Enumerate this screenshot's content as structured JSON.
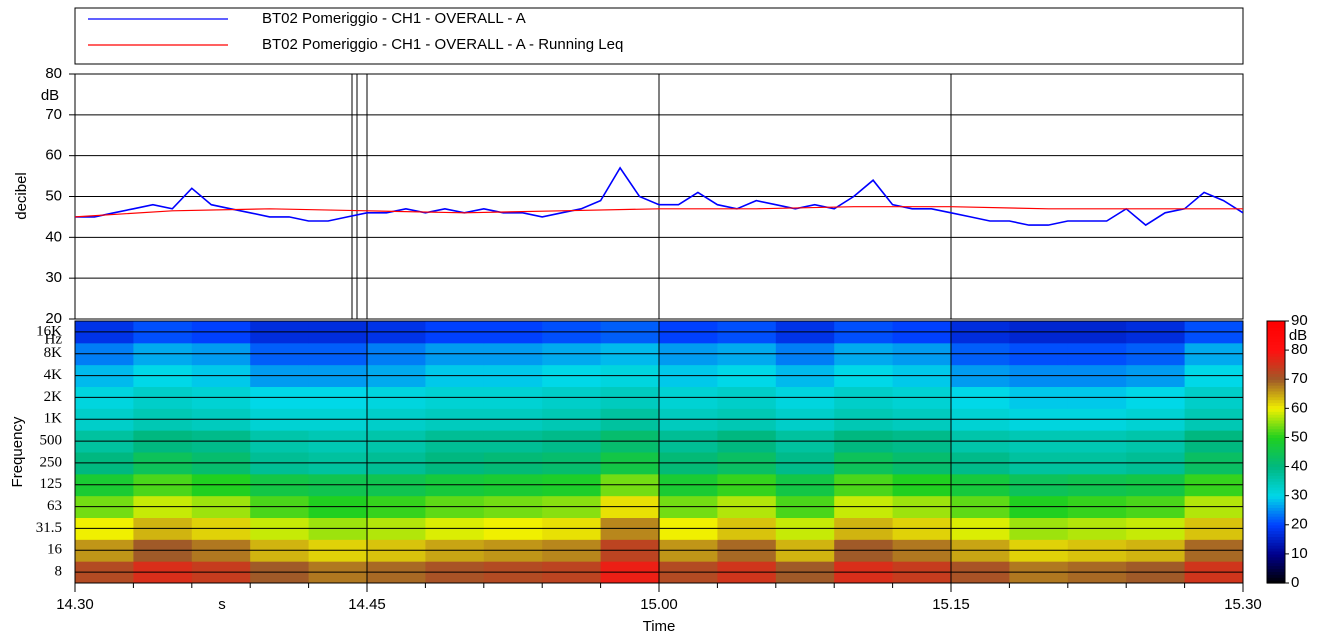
{
  "chart_data": [
    {
      "type": "line",
      "ylabel": "decibel",
      "y_unit": "dB",
      "ylim": [
        20,
        80
      ],
      "yticks": [
        20,
        30,
        40,
        50,
        60,
        70,
        80
      ],
      "grid": true,
      "legend": "top",
      "series": [
        {
          "name": "BT02 Pomeriggio - CH1 - OVERALL - A",
          "color": "#0000ff",
          "x": [
            870,
            871,
            872,
            873,
            874,
            875,
            876,
            877,
            878,
            879,
            880,
            881,
            882,
            883,
            884,
            885,
            886,
            887,
            888,
            889,
            890,
            891,
            892,
            893,
            894,
            895,
            896,
            897,
            898,
            899,
            900,
            901,
            902,
            903,
            904,
            905,
            906,
            907,
            908,
            909,
            910,
            911,
            912,
            913,
            914,
            915,
            916,
            917,
            918,
            919,
            920,
            921,
            922,
            923,
            924,
            925,
            926,
            927,
            928,
            929,
            930
          ],
          "values": [
            45,
            45,
            46,
            47,
            48,
            47,
            52,
            48,
            47,
            46,
            45,
            45,
            44,
            44,
            45,
            46,
            46,
            47,
            46,
            47,
            46,
            47,
            46,
            46,
            45,
            46,
            47,
            49,
            57,
            50,
            48,
            48,
            51,
            48,
            47,
            49,
            48,
            47,
            48,
            47,
            50,
            54,
            48,
            47,
            47,
            46,
            45,
            44,
            44,
            43,
            43,
            44,
            44,
            44,
            47,
            43,
            46,
            47,
            51,
            49,
            46
          ]
        },
        {
          "name": "BT02 Pomeriggio - CH1 - OVERALL - A - Running Leq",
          "color": "#ff0000",
          "x": [
            870,
            875,
            880,
            885,
            890,
            895,
            900,
            905,
            910,
            915,
            920,
            925,
            930
          ],
          "values": [
            45,
            46.5,
            47,
            46.5,
            46,
            46.5,
            47,
            47,
            47.5,
            47.5,
            47,
            47,
            47
          ]
        }
      ]
    },
    {
      "type": "heatmap",
      "xlabel": "Time",
      "x_unit": "s",
      "xlim": [
        870,
        930
      ],
      "xticks": [
        {
          "value": 870,
          "label": "14.30"
        },
        {
          "value": 885,
          "label": "14.45"
        },
        {
          "value": 900,
          "label": "15.00"
        },
        {
          "value": 915,
          "label": "15.15"
        },
        {
          "value": 930,
          "label": "15.30"
        }
      ],
      "xminorticks": [
        873,
        876,
        879,
        882,
        888,
        891,
        894,
        897,
        903,
        906,
        909,
        912,
        918,
        921,
        924,
        927
      ],
      "ylabel": "Frequency",
      "y_unit": "Hz",
      "categories": [
        "8",
        "16",
        "31.5",
        "63",
        "125",
        "250",
        "500",
        "1K",
        "2K",
        "4K",
        "8K",
        "16K"
      ],
      "z": [
        [
          72,
          76,
          74,
          70,
          68,
          69,
          71,
          72,
          73,
          78,
          72,
          75,
          70,
          76,
          74,
          71,
          68,
          69,
          70,
          75
        ],
        [
          66,
          70,
          68,
          64,
          62,
          63,
          65,
          66,
          67,
          73,
          66,
          69,
          64,
          70,
          68,
          65,
          62,
          63,
          64,
          69
        ],
        [
          60,
          64,
          62,
          58,
          56,
          57,
          59,
          60,
          61,
          67,
          60,
          63,
          58,
          64,
          62,
          59,
          56,
          57,
          58,
          63
        ],
        [
          54,
          58,
          56,
          52,
          50,
          51,
          53,
          54,
          55,
          61,
          54,
          57,
          52,
          58,
          56,
          53,
          50,
          51,
          52,
          57
        ],
        [
          48,
          52,
          50,
          46,
          45,
          45,
          47,
          48,
          49,
          54,
          48,
          51,
          46,
          52,
          50,
          47,
          44,
          45,
          46,
          51
        ],
        [
          40,
          44,
          42,
          38,
          37,
          38,
          40,
          41,
          42,
          46,
          41,
          43,
          39,
          44,
          42,
          39,
          37,
          37,
          38,
          43
        ],
        [
          37,
          40,
          39,
          36,
          35,
          36,
          38,
          38,
          39,
          42,
          38,
          40,
          37,
          40,
          39,
          36,
          35,
          35,
          36,
          40
        ],
        [
          33,
          35,
          34,
          32,
          32,
          33,
          34,
          34,
          35,
          37,
          34,
          35,
          33,
          35,
          34,
          32,
          31,
          31,
          32,
          35
        ],
        [
          31,
          33,
          32,
          30,
          30,
          31,
          32,
          32,
          33,
          34,
          32,
          33,
          31,
          33,
          32,
          30,
          29,
          29,
          30,
          33
        ],
        [
          28,
          30,
          29,
          26,
          26,
          27,
          29,
          29,
          30,
          31,
          29,
          30,
          28,
          30,
          29,
          26,
          25,
          25,
          26,
          30
        ],
        [
          24,
          27,
          26,
          22,
          22,
          24,
          26,
          26,
          27,
          28,
          26,
          27,
          24,
          27,
          26,
          22,
          21,
          21,
          22,
          27
        ],
        [
          18,
          21,
          20,
          17,
          17,
          18,
          20,
          20,
          21,
          22,
          20,
          21,
          18,
          21,
          20,
          17,
          16,
          16,
          17,
          21
        ]
      ],
      "zlim": [
        0,
        90
      ],
      "zticks": [
        0,
        10,
        20,
        30,
        40,
        50,
        60,
        70,
        80,
        90
      ],
      "z_unit": "dB",
      "colorscale": [
        "#000000",
        "#00008c",
        "#0040ff",
        "#00d8e8",
        "#00b880",
        "#20d020",
        "#f0f000",
        "#a05a28",
        "#ff1010",
        "#ff0000"
      ]
    }
  ]
}
